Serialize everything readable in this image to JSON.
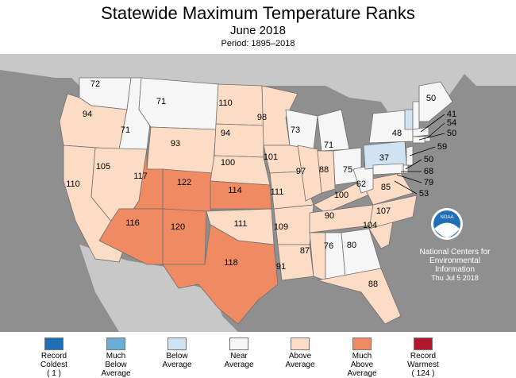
{
  "header": {
    "title": "Statewide Maximum Temperature Ranks",
    "subtitle": "June 2018",
    "period": "Period: 1895–2018"
  },
  "colors": {
    "background": "#8f8f8f",
    "record_coldest": "#1f6eb6",
    "much_below": "#6aaed6",
    "below": "#cfe3f2",
    "near": "#f6f6f6",
    "above": "#fddcc5",
    "much_above": "#ef8a62",
    "record_warmest": "#b2182b"
  },
  "states": [
    {
      "abbr": "WA",
      "rank": "72",
      "category": "near"
    },
    {
      "abbr": "OR",
      "rank": "94",
      "category": "above"
    },
    {
      "abbr": "CA",
      "rank": "110",
      "category": "above"
    },
    {
      "abbr": "ID",
      "rank": "71",
      "category": "near"
    },
    {
      "abbr": "NV",
      "rank": "105",
      "category": "above"
    },
    {
      "abbr": "MT",
      "rank": "71",
      "category": "near"
    },
    {
      "abbr": "WY",
      "rank": "93",
      "category": "above"
    },
    {
      "abbr": "UT",
      "rank": "117",
      "category": "much_above"
    },
    {
      "abbr": "AZ",
      "rank": "116",
      "category": "much_above"
    },
    {
      "abbr": "CO",
      "rank": "122",
      "category": "much_above"
    },
    {
      "abbr": "NM",
      "rank": "120",
      "category": "much_above"
    },
    {
      "abbr": "ND",
      "rank": "110",
      "category": "above"
    },
    {
      "abbr": "SD",
      "rank": "94",
      "category": "above"
    },
    {
      "abbr": "NE",
      "rank": "100",
      "category": "above"
    },
    {
      "abbr": "KS",
      "rank": "114",
      "category": "much_above"
    },
    {
      "abbr": "OK",
      "rank": "111",
      "category": "above"
    },
    {
      "abbr": "TX",
      "rank": "118",
      "category": "much_above"
    },
    {
      "abbr": "MN",
      "rank": "98",
      "category": "above"
    },
    {
      "abbr": "IA",
      "rank": "101",
      "category": "above"
    },
    {
      "abbr": "MO",
      "rank": "111",
      "category": "above"
    },
    {
      "abbr": "AR",
      "rank": "109",
      "category": "above"
    },
    {
      "abbr": "LA",
      "rank": "91",
      "category": "above"
    },
    {
      "abbr": "WI",
      "rank": "73",
      "category": "near"
    },
    {
      "abbr": "IL",
      "rank": "97",
      "category": "above"
    },
    {
      "abbr": "MI",
      "rank": "71",
      "category": "near"
    },
    {
      "abbr": "IN",
      "rank": "88",
      "category": "above"
    },
    {
      "abbr": "OH",
      "rank": "75",
      "category": "near"
    },
    {
      "abbr": "KY",
      "rank": "100",
      "category": "above"
    },
    {
      "abbr": "TN",
      "rank": "90",
      "category": "above"
    },
    {
      "abbr": "MS",
      "rank": "87",
      "category": "above"
    },
    {
      "abbr": "AL",
      "rank": "76",
      "category": "near"
    },
    {
      "abbr": "GA",
      "rank": "80",
      "category": "near"
    },
    {
      "abbr": "FL",
      "rank": "88",
      "category": "above"
    },
    {
      "abbr": "SC",
      "rank": "104",
      "category": "above"
    },
    {
      "abbr": "NC",
      "rank": "107",
      "category": "above"
    },
    {
      "abbr": "VA",
      "rank": "85",
      "category": "above"
    },
    {
      "abbr": "WV",
      "rank": "62",
      "category": "near"
    },
    {
      "abbr": "PA",
      "rank": "37",
      "category": "below"
    },
    {
      "abbr": "NY",
      "rank": "48",
      "category": "near"
    },
    {
      "abbr": "VT",
      "rank": "",
      "category": "below"
    },
    {
      "abbr": "NH",
      "rank": "",
      "category": "near"
    },
    {
      "abbr": "ME",
      "rank": "50",
      "category": "near"
    },
    {
      "abbr": "MA",
      "rank": "41",
      "category": "near"
    },
    {
      "abbr": "RI",
      "rank": "54",
      "category": "near"
    },
    {
      "abbr": "CT",
      "rank": "50",
      "category": "near"
    },
    {
      "abbr": "NJ",
      "rank": "59",
      "category": "near"
    },
    {
      "abbr": "DE",
      "rank": "50",
      "category": "near"
    },
    {
      "abbr": "MD",
      "rank": "68",
      "category": "near"
    },
    {
      "abbr": "DC",
      "rank": "79",
      "category": "near"
    },
    {
      "abbr": "VA-coast",
      "rank": "53",
      "category": "near"
    }
  ],
  "legend": [
    {
      "key": "record_coldest",
      "label": "Record\nColdest\n( 1 )"
    },
    {
      "key": "much_below",
      "label": "Much\nBelow\nAverage"
    },
    {
      "key": "below",
      "label": "Below\nAverage"
    },
    {
      "key": "near",
      "label": "Near\nAverage"
    },
    {
      "key": "above",
      "label": "Above\nAverage"
    },
    {
      "key": "much_above",
      "label": "Much\nAbove\nAverage"
    },
    {
      "key": "record_warmest",
      "label": "Record\nWarmest\n( 124 )"
    }
  ],
  "credits": {
    "logo_text": "NOAA",
    "org_line1": "National Centers for",
    "org_line2": "Environmental",
    "org_line3": "Information",
    "date": "Thu Jul  5 2018"
  }
}
